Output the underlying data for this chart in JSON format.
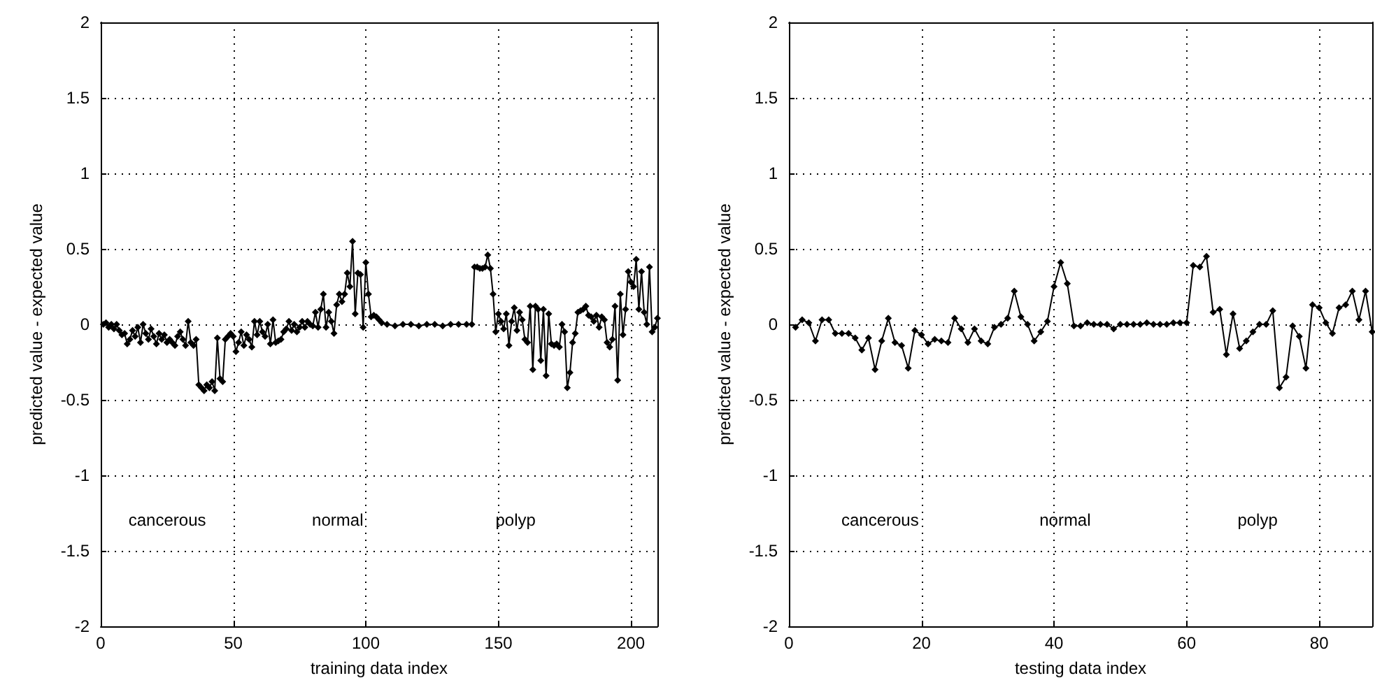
{
  "chart_data": [
    {
      "type": "line",
      "xlabel": "training data index",
      "ylabel": "predicted value - expected value",
      "xlim": [
        0,
        210
      ],
      "xticks": [
        0,
        50,
        100,
        150,
        200
      ],
      "ylim": [
        -2,
        2
      ],
      "yticks": [
        -2,
        -1.5,
        -1,
        -0.5,
        0,
        0.5,
        1,
        1.5,
        2
      ],
      "grid": true,
      "marker": "diamond",
      "line_style": "solid",
      "annotations": [
        "cancerous",
        "normal",
        "polyp"
      ],
      "series": [
        {
          "color": "#000000",
          "x": [
            1,
            2,
            3,
            4,
            5,
            6,
            7,
            8,
            9,
            10,
            11,
            12,
            13,
            14,
            15,
            16,
            17,
            18,
            19,
            20,
            21,
            22,
            23,
            24,
            25,
            26,
            27,
            28,
            29,
            30,
            31,
            32,
            33,
            34,
            35,
            36,
            37,
            38,
            39,
            40,
            41,
            42,
            43,
            44,
            45,
            46,
            47,
            48,
            49,
            50,
            51,
            52,
            53,
            54,
            55,
            56,
            57,
            58,
            59,
            60,
            61,
            62,
            63,
            64,
            65,
            66,
            67,
            68,
            69,
            70,
            71,
            72,
            73,
            74,
            75,
            76,
            77,
            78,
            79,
            80,
            81,
            82,
            83,
            84,
            85,
            86,
            87,
            88,
            89,
            90,
            91,
            92,
            93,
            94,
            95,
            96,
            97,
            98,
            99,
            100,
            101,
            102,
            103,
            104,
            105,
            106,
            108,
            111,
            114,
            117,
            120,
            123,
            126,
            129,
            132,
            135,
            138,
            140,
            141,
            142,
            143,
            144,
            145,
            146,
            147,
            148,
            149,
            150,
            151,
            152,
            153,
            154,
            155,
            156,
            157,
            158,
            159,
            160,
            161,
            162,
            163,
            164,
            165,
            166,
            167,
            168,
            169,
            170,
            171,
            172,
            173,
            174,
            175,
            176,
            177,
            178,
            179,
            180,
            181,
            182,
            183,
            184,
            185,
            186,
            187,
            188,
            189,
            190,
            191,
            192,
            193,
            194,
            195,
            196,
            197,
            198,
            199,
            200,
            201,
            202,
            203,
            204,
            205,
            206,
            207,
            208,
            209,
            210
          ],
          "values": [
            0,
            0.01,
            -0.02,
            0,
            -0.03,
            0,
            -0.04,
            -0.07,
            -0.06,
            -0.13,
            -0.1,
            -0.04,
            -0.08,
            -0.02,
            -0.12,
            0,
            -0.06,
            -0.1,
            -0.03,
            -0.08,
            -0.13,
            -0.06,
            -0.1,
            -0.07,
            -0.12,
            -0.1,
            -0.12,
            -0.14,
            -0.08,
            -0.05,
            -0.1,
            -0.14,
            0.02,
            -0.12,
            -0.14,
            -0.1,
            -0.4,
            -0.42,
            -0.44,
            -0.4,
            -0.42,
            -0.38,
            -0.44,
            -0.09,
            -0.36,
            -0.38,
            -0.1,
            -0.08,
            -0.06,
            -0.08,
            -0.18,
            -0.12,
            -0.05,
            -0.14,
            -0.07,
            -0.1,
            -0.15,
            0.02,
            -0.07,
            0.02,
            -0.05,
            -0.08,
            0,
            -0.13,
            0.03,
            -0.12,
            -0.11,
            -0.1,
            -0.05,
            -0.03,
            0.02,
            -0.04,
            0,
            -0.05,
            -0.02,
            0.02,
            -0.02,
            0.02,
            0,
            -0.01,
            0.08,
            -0.02,
            0.1,
            0.2,
            -0.02,
            0.08,
            0.02,
            -0.06,
            0.13,
            0.2,
            0.15,
            0.2,
            0.34,
            0.25,
            0.55,
            0.07,
            0.34,
            0.33,
            -0.02,
            0.41,
            0.2,
            0.05,
            0.06,
            0.05,
            0.03,
            0.01,
            0,
            -0.01,
            0,
            0,
            -0.01,
            0,
            0,
            -0.01,
            0,
            0,
            0,
            0,
            0.38,
            0.38,
            0.37,
            0.37,
            0.38,
            0.46,
            0.37,
            0.2,
            -0.05,
            0.07,
            0.02,
            -0.03,
            0.07,
            -0.14,
            0.02,
            0.11,
            -0.04,
            0.08,
            0.03,
            -0.1,
            -0.12,
            0.12,
            -0.3,
            0.12,
            0.1,
            -0.24,
            0.1,
            -0.34,
            0.07,
            -0.13,
            -0.14,
            -0.13,
            -0.15,
            0,
            -0.05,
            -0.42,
            -0.32,
            -0.12,
            -0.06,
            0.08,
            0.09,
            0.1,
            0.12,
            0.06,
            0.05,
            0.02,
            0.06,
            -0.02,
            0.05,
            0.03,
            -0.12,
            -0.15,
            -0.1,
            0.12,
            -0.37,
            0.2,
            -0.07,
            0.1,
            0.35,
            0.28,
            0.25,
            0.43,
            0.1,
            0.35,
            0.08,
            0,
            0.38,
            -0.05,
            -0.02,
            0.04
          ]
        }
      ]
    },
    {
      "type": "line",
      "xlabel": "testing data index",
      "ylabel": "predicted value - expected value",
      "xlim": [
        0,
        88
      ],
      "xticks": [
        0,
        20,
        40,
        60,
        80
      ],
      "ylim": [
        -2,
        2
      ],
      "yticks": [
        -2,
        -1.5,
        -1,
        -0.5,
        0,
        0.5,
        1,
        1.5,
        2
      ],
      "grid": true,
      "marker": "diamond",
      "line_style": "solid",
      "annotations": [
        "cancerous",
        "normal",
        "polyp"
      ],
      "series": [
        {
          "color": "#000000",
          "x": [
            1,
            2,
            3,
            4,
            5,
            6,
            7,
            8,
            9,
            10,
            11,
            12,
            13,
            14,
            15,
            16,
            17,
            18,
            19,
            20,
            21,
            22,
            23,
            24,
            25,
            26,
            27,
            28,
            29,
            30,
            31,
            32,
            33,
            34,
            35,
            36,
            37,
            38,
            39,
            40,
            41,
            42,
            43,
            44,
            45,
            46,
            47,
            48,
            49,
            50,
            51,
            52,
            53,
            54,
            55,
            56,
            57,
            58,
            59,
            60,
            61,
            62,
            63,
            64,
            65,
            66,
            67,
            68,
            69,
            70,
            71,
            72,
            73,
            74,
            75,
            76,
            77,
            78,
            79,
            80,
            81,
            82,
            83,
            84,
            85,
            86,
            87,
            88
          ],
          "values": [
            -0.02,
            0.03,
            0.01,
            -0.11,
            0.03,
            0.03,
            -0.06,
            -0.06,
            -0.06,
            -0.09,
            -0.17,
            -0.09,
            -0.3,
            -0.11,
            0.04,
            -0.12,
            -0.14,
            -0.29,
            -0.04,
            -0.07,
            -0.13,
            -0.1,
            -0.11,
            -0.12,
            0.04,
            -0.03,
            -0.12,
            -0.03,
            -0.11,
            -0.13,
            -0.02,
            0,
            0.04,
            0.22,
            0.05,
            0,
            -0.11,
            -0.05,
            0.02,
            0.25,
            0.41,
            0.27,
            -0.01,
            -0.01,
            0.01,
            0,
            0,
            0,
            -0.03,
            0,
            0,
            0,
            0,
            0.01,
            0,
            0,
            0,
            0.01,
            0.01,
            0.01,
            0.39,
            0.38,
            0.45,
            0.08,
            0.1,
            -0.2,
            0.07,
            -0.16,
            -0.11,
            -0.05,
            0,
            0,
            0.09,
            -0.42,
            -0.35,
            -0.01,
            -0.08,
            -0.29,
            0.13,
            0.11,
            0.01,
            -0.06,
            0.11,
            0.13,
            0.22,
            0.03,
            0.22,
            -0.05
          ]
        }
      ]
    }
  ]
}
